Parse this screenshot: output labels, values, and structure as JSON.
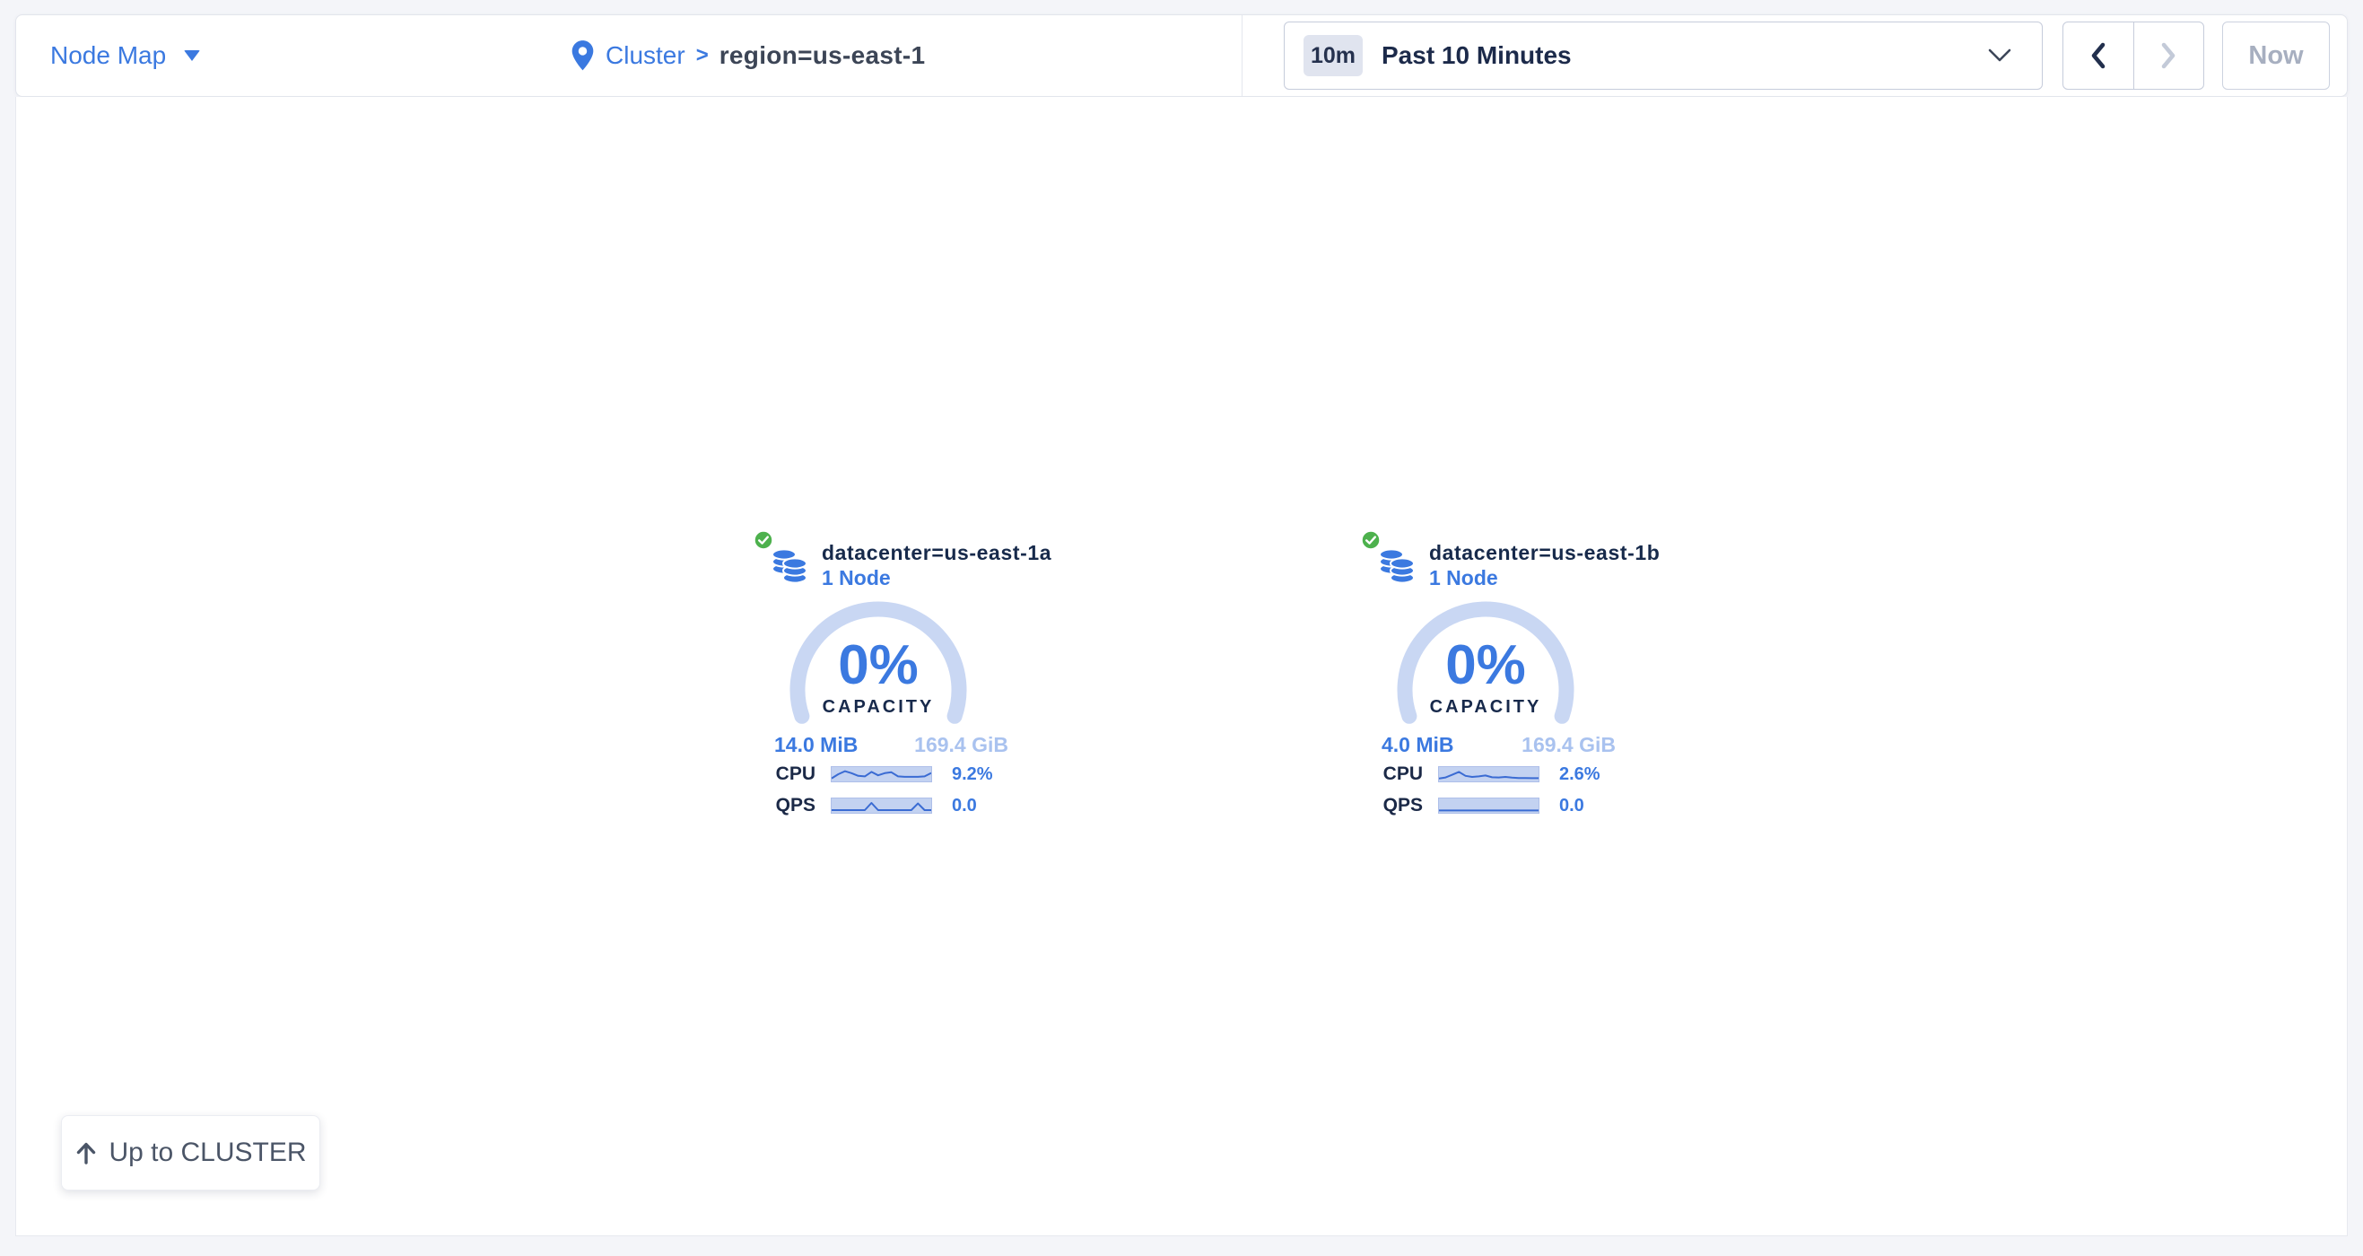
{
  "topbar": {
    "view_selector": {
      "label": "Node Map"
    },
    "breadcrumb": {
      "root": "Cluster",
      "separator": ">",
      "current": "region=us-east-1"
    },
    "time_window": {
      "badge": "10m",
      "label": "Past 10 Minutes"
    },
    "nav": {
      "now_label": "Now"
    }
  },
  "map": {
    "up_button_label": "Up to CLUSTER",
    "datacenters": [
      {
        "name": "datacenter=us-east-1a",
        "nodes": "1 Node",
        "capacity_pct": "0%",
        "capacity_label": "CAPACITY",
        "capacity_used": "14.0 MiB",
        "capacity_total": "169.4 GiB",
        "cpu_label": "CPU",
        "cpu_value": "9.2%",
        "qps_label": "QPS",
        "qps_value": "0.0",
        "cpu_spark": [
          0.12,
          0.5,
          0.78,
          0.6,
          0.35,
          0.3,
          0.72,
          0.4,
          0.6,
          0.68,
          0.3,
          0.26,
          0.26,
          0.26,
          0.3,
          0.62
        ],
        "qps_spark": [
          0.08,
          0.08,
          0.08,
          0.08,
          0.08,
          0.08,
          0.75,
          0.08,
          0.08,
          0.08,
          0.08,
          0.08,
          0.08,
          0.7,
          0.08,
          0.08
        ]
      },
      {
        "name": "datacenter=us-east-1b",
        "nodes": "1 Node",
        "capacity_pct": "0%",
        "capacity_label": "CAPACITY",
        "capacity_used": "4.0 MiB",
        "capacity_total": "169.4 GiB",
        "cpu_label": "CPU",
        "cpu_value": "2.6%",
        "qps_label": "QPS",
        "qps_value": "0.0",
        "cpu_spark": [
          0.1,
          0.2,
          0.45,
          0.72,
          0.35,
          0.25,
          0.3,
          0.38,
          0.22,
          0.2,
          0.25,
          0.18,
          0.15,
          0.15,
          0.13,
          0.13
        ],
        "qps_spark": [
          0.05,
          0.05,
          0.05,
          0.05,
          0.05,
          0.05,
          0.05,
          0.05,
          0.05,
          0.05,
          0.05,
          0.05,
          0.05,
          0.05,
          0.05,
          0.05
        ]
      }
    ]
  },
  "colors": {
    "accent_blue": "#3b79e0",
    "navy": "#17294b",
    "healthy_green": "#4db14d",
    "gauge_arc": "#c9d7f3",
    "capacity_total_text": "#a9c2ef",
    "spark_bg": "#c3d2f1",
    "spark_line": "#3a6bd3",
    "disabled_gray": "#a7afc0",
    "page_bg": "#f4f5f9"
  }
}
